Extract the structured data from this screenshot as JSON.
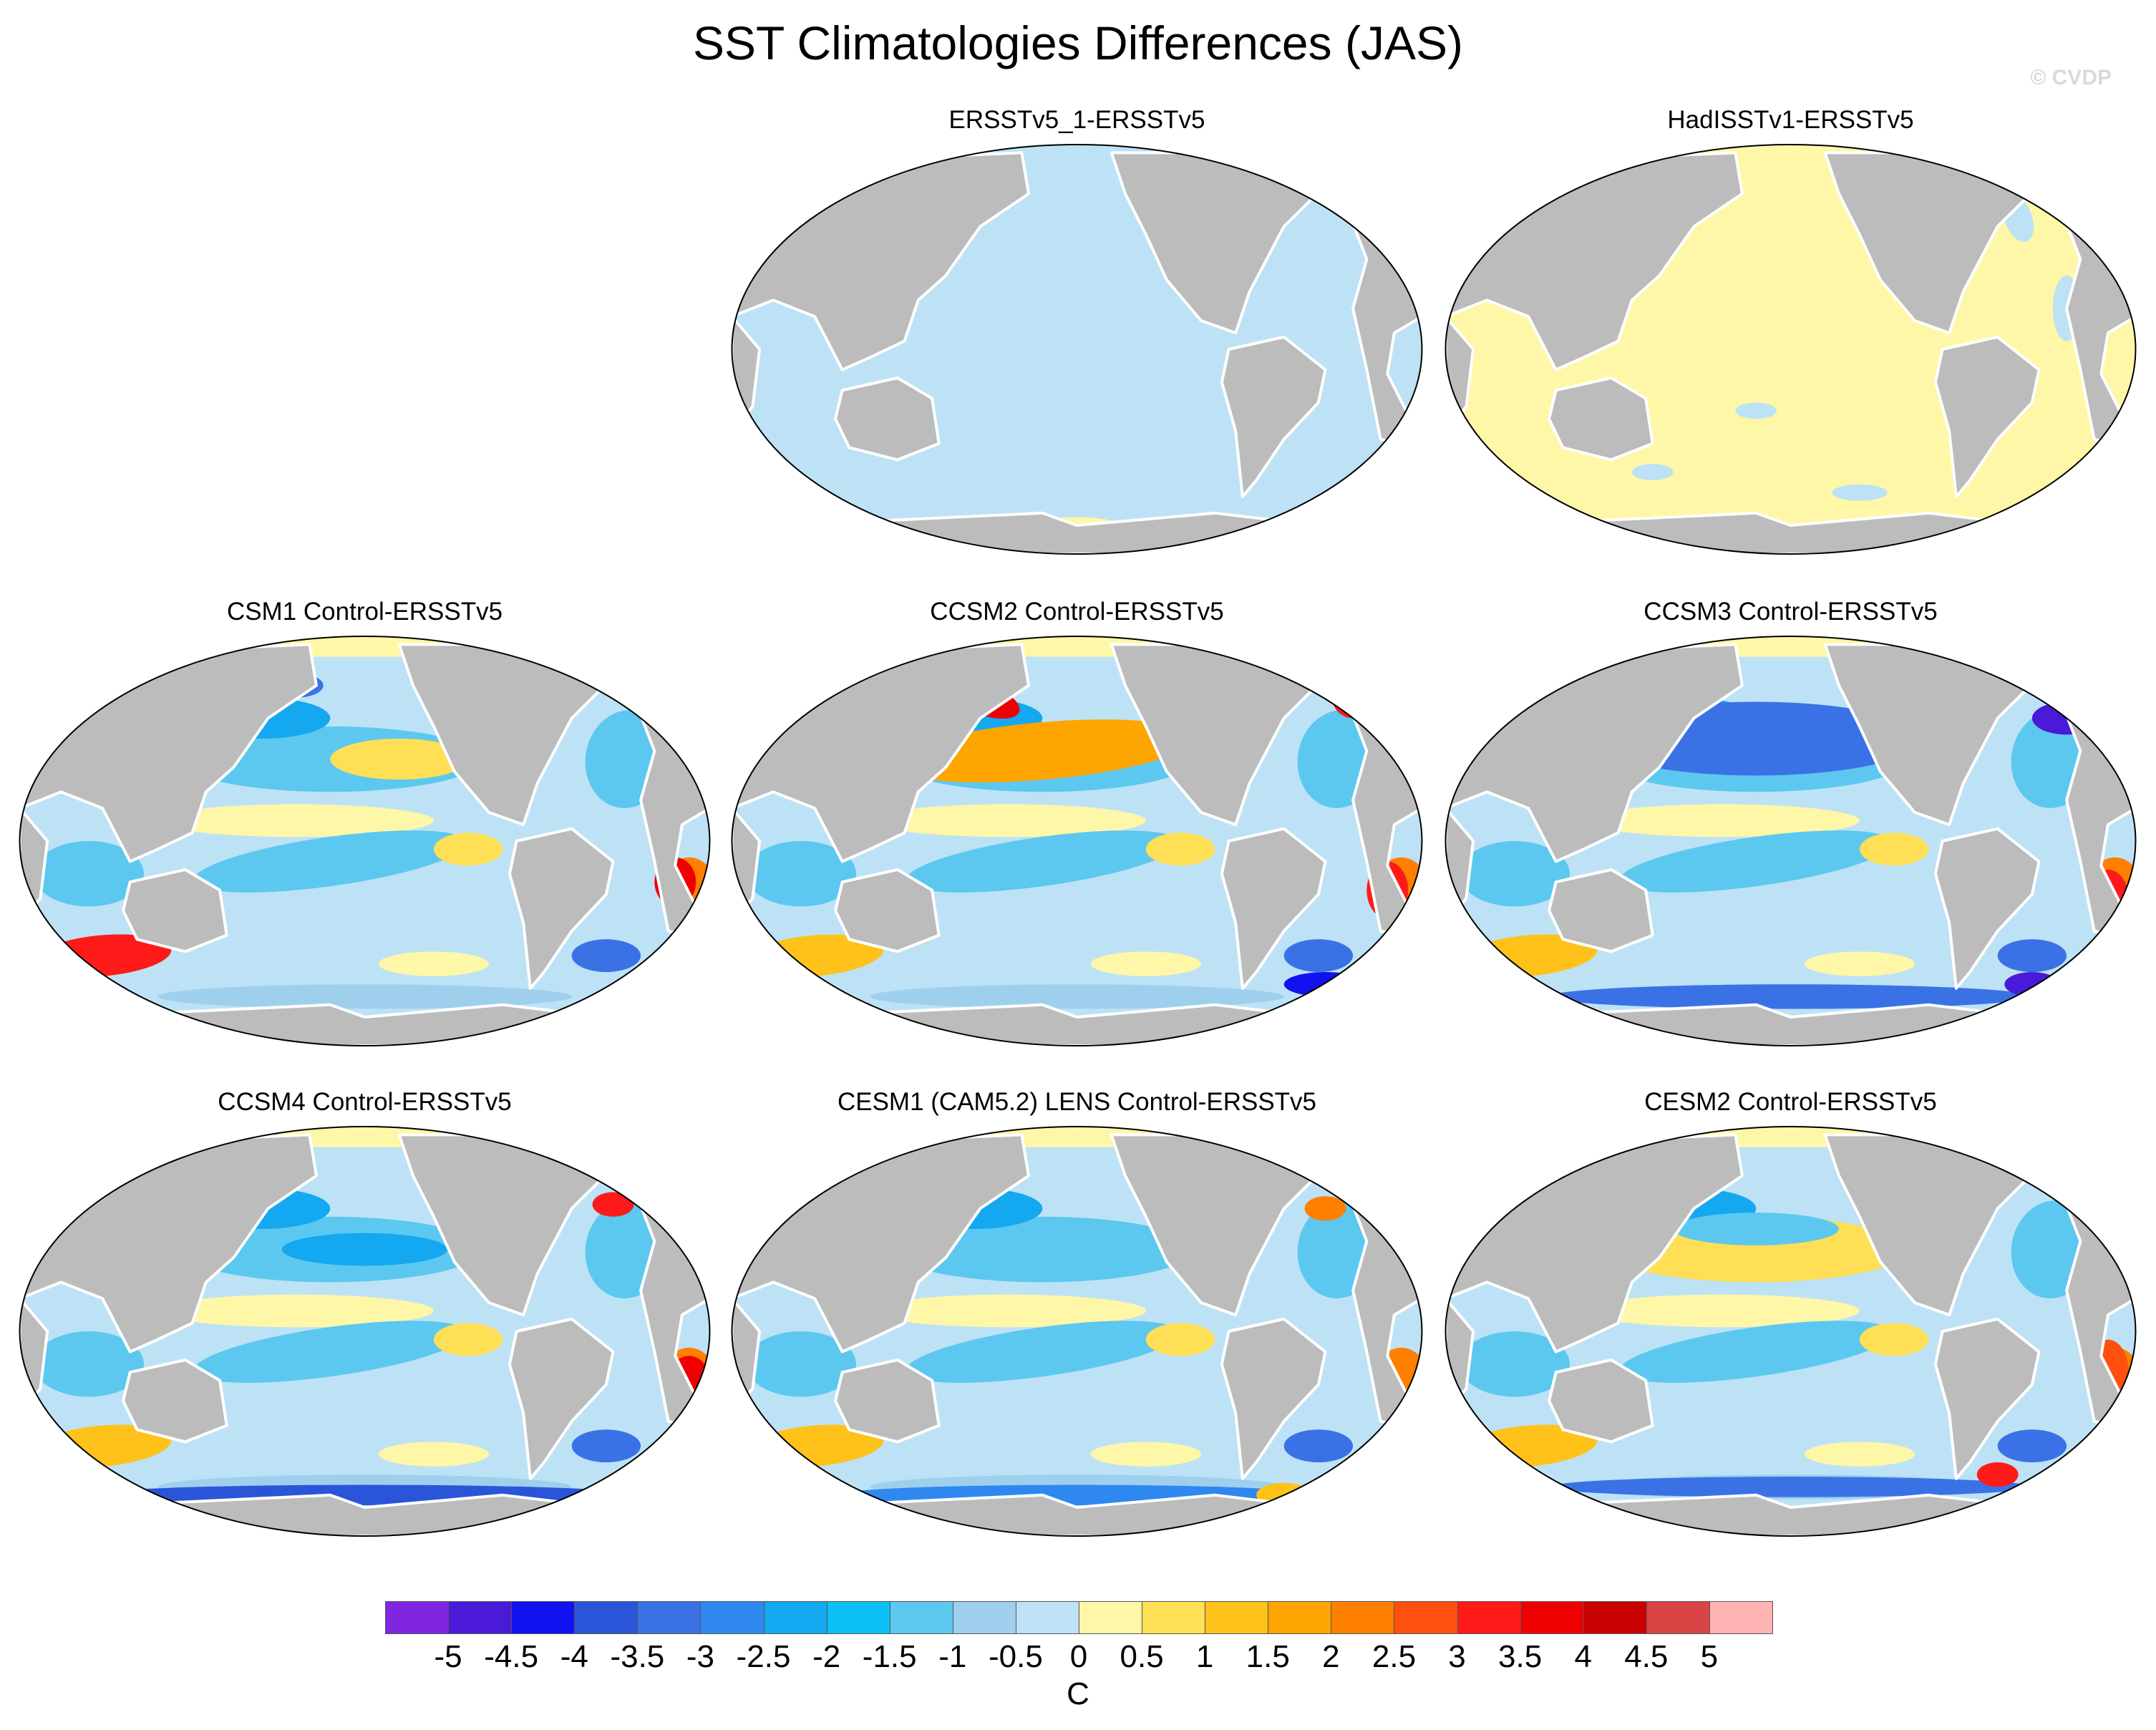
{
  "title": "SST Climatologies Differences (JAS)",
  "credit": "© CVDP",
  "panels": [
    {
      "id": "ersstv5_1",
      "title": "ERSSTv5_1-ERSSTv5",
      "pattern": "uniform-negative"
    },
    {
      "id": "hadisst",
      "title": "HadISSTv1-ERSSTv5",
      "pattern": "uniform-positive"
    },
    {
      "id": "csm1",
      "title": "CSM1 Control-ERSSTv5",
      "pattern": "model"
    },
    {
      "id": "ccsm2",
      "title": "CCSM2 Control-ERSSTv5",
      "pattern": "model"
    },
    {
      "id": "ccsm3",
      "title": "CCSM3 Control-ERSSTv5",
      "pattern": "model"
    },
    {
      "id": "ccsm4",
      "title": "CCSM4 Control-ERSSTv5",
      "pattern": "model"
    },
    {
      "id": "cesm1",
      "title": "CESM1 (CAM5.2) LENS Control-ERSSTv5",
      "pattern": "model"
    },
    {
      "id": "cesm2",
      "title": "CESM2 Control-ERSSTv5",
      "pattern": "model"
    }
  ],
  "colorbar": {
    "unit": "C",
    "labels": [
      "-5",
      "-4.5",
      "-4",
      "-3.5",
      "-3",
      "-2.5",
      "-2",
      "-1.5",
      "-1",
      "-0.5",
      "0",
      "0.5",
      "1",
      "1.5",
      "2",
      "2.5",
      "3",
      "3.5",
      "4",
      "4.5",
      "5"
    ],
    "colors": [
      "#8025e0",
      "#4a1ad8",
      "#1212f0",
      "#2a55d8",
      "#3a72e6",
      "#2f88f0",
      "#14a8f0",
      "#0cc0f5",
      "#5cc8f0",
      "#9ed0ee",
      "#bde2f5",
      "#fff7a8",
      "#ffdf55",
      "#ffc21a",
      "#ffa500",
      "#ff7f00",
      "#ff5010",
      "#ff1a1a",
      "#ee0000",
      "#c80000",
      "#d94545",
      "#ffb4b4"
    ]
  },
  "map_colors": {
    "land": "#bcbcbc",
    "coast": "#ffffff",
    "border": "#000000"
  }
}
